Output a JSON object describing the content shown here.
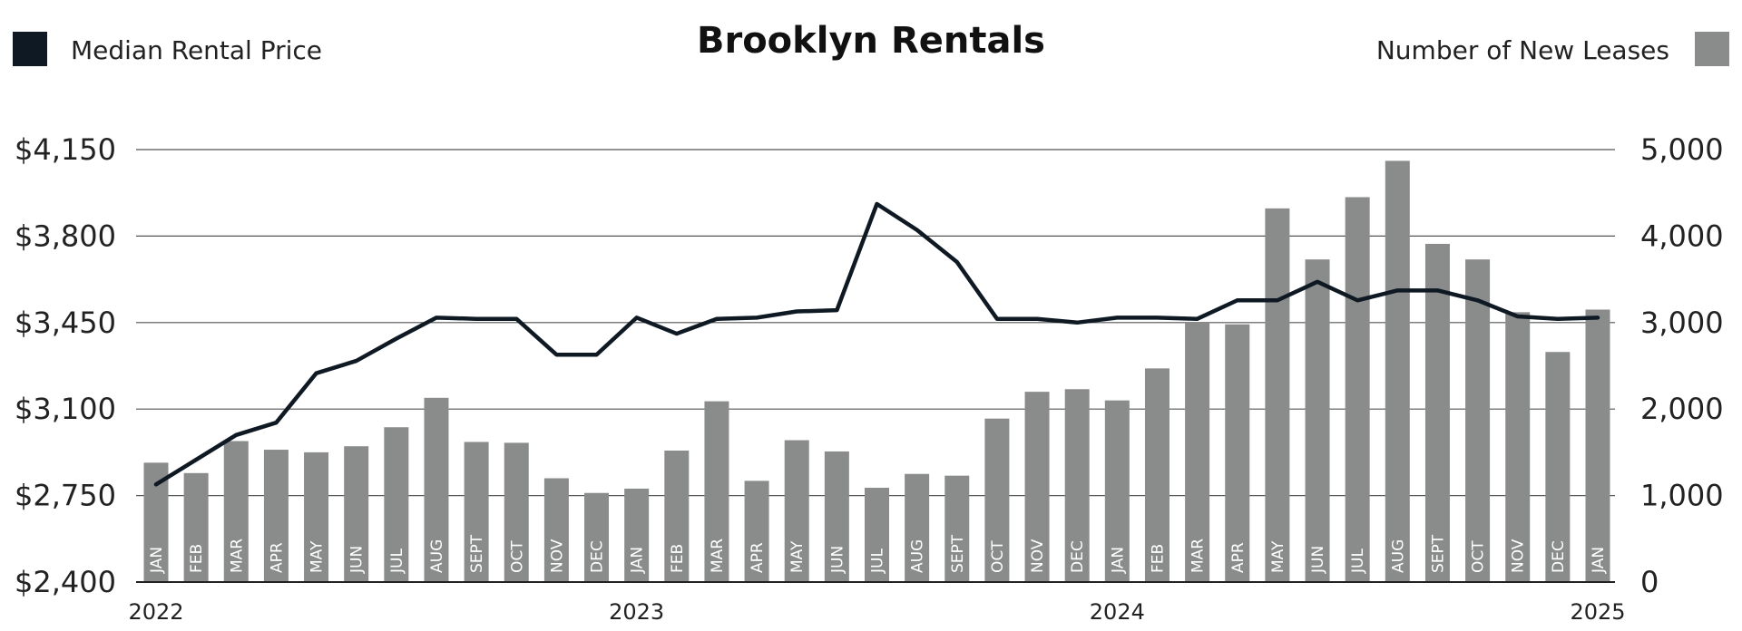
{
  "chart_data": {
    "type": "bar",
    "title": "Brooklyn Rentals",
    "categories": [
      "JAN",
      "FEB",
      "MAR",
      "APR",
      "MAY",
      "JUN",
      "JUL",
      "AUG",
      "SEPT",
      "OCT",
      "NOV",
      "DEC",
      "JAN",
      "FEB",
      "MAR",
      "APR",
      "MAY",
      "JUN",
      "JUL",
      "AUG",
      "SEPT",
      "OCT",
      "NOV",
      "DEC",
      "JAN",
      "FEB",
      "MAR",
      "APR",
      "MAY",
      "JUN",
      "JUL",
      "AUG",
      "SEPT",
      "OCT",
      "NOV",
      "DEC",
      "JAN"
    ],
    "year_labels": [
      {
        "label": "2022",
        "index": 0
      },
      {
        "label": "2023",
        "index": 12
      },
      {
        "label": "2024",
        "index": 24
      },
      {
        "label": "2025",
        "index": 36
      }
    ],
    "series": [
      {
        "name": "Number of New Leases",
        "type": "bar",
        "axis": "right",
        "color": "#8a8c8c",
        "values": [
          1380,
          1260,
          1630,
          1530,
          1500,
          1570,
          1790,
          2130,
          1620,
          1610,
          1200,
          1030,
          1080,
          1520,
          2090,
          1170,
          1640,
          1510,
          1090,
          1250,
          1230,
          1890,
          2200,
          2230,
          2100,
          2470,
          3000,
          2980,
          4320,
          3730,
          4450,
          4870,
          3910,
          3730,
          3120,
          2660,
          3150
        ]
      },
      {
        "name": "Median Rental Price",
        "type": "line",
        "axis": "left",
        "color": "#0f1923",
        "values": [
          2795,
          2895,
          2995,
          3045,
          3245,
          3295,
          3385,
          3470,
          3465,
          3465,
          3320,
          3320,
          3470,
          3405,
          3465,
          3470,
          3495,
          3500,
          3930,
          3825,
          3695,
          3465,
          3465,
          3450,
          3470,
          3470,
          3465,
          3540,
          3540,
          3615,
          3540,
          3580,
          3580,
          3540,
          3475,
          3465,
          3470
        ]
      }
    ],
    "y_left": {
      "ylim": [
        2400,
        4150
      ],
      "ticks": [
        "$2,400",
        "$2,750",
        "$3,100",
        "$3,450",
        "$3,800",
        "$4,150"
      ],
      "tick_values": [
        2400,
        2750,
        3100,
        3450,
        3800,
        4150
      ]
    },
    "y_right": {
      "ylim": [
        0,
        5000
      ],
      "ticks": [
        "0",
        "1,000",
        "2,000",
        "3,000",
        "4,000",
        "5,000"
      ],
      "tick_values": [
        0,
        1000,
        2000,
        3000,
        4000,
        5000
      ]
    },
    "grid": true,
    "legend": {
      "left": "top-left",
      "right": "top-right"
    }
  }
}
